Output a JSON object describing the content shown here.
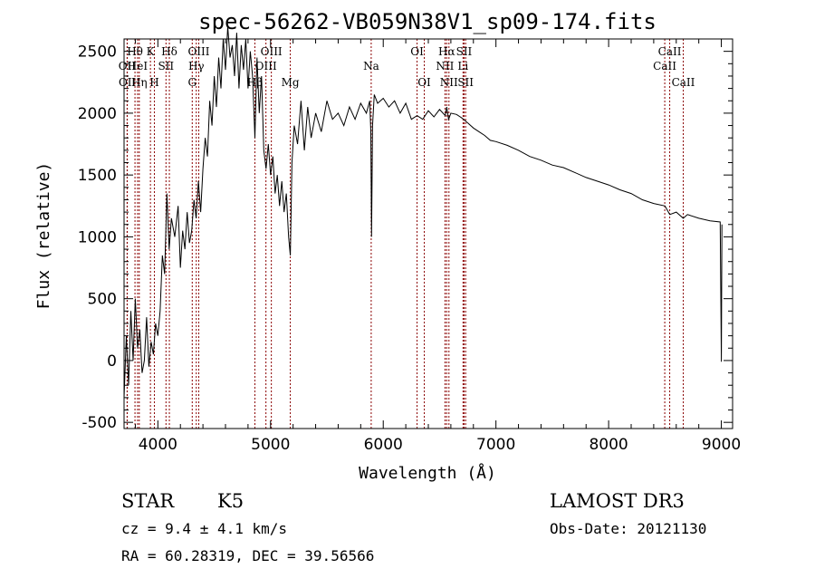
{
  "chart_data": {
    "type": "line",
    "title": "spec-56262-VB059N38V1_sp09-174.fits",
    "xlabel": "Wavelength (Å)",
    "ylabel": "Flux (relative)",
    "xlim": [
      3700,
      9100
    ],
    "ylim": [
      -550,
      2600
    ],
    "x_ticks": [
      4000,
      5000,
      6000,
      7000,
      8000,
      9000
    ],
    "y_ticks": [
      -500,
      0,
      500,
      1000,
      1500,
      2000,
      2500
    ],
    "series": [
      {
        "name": "spectrum",
        "x": [
          3700,
          3720,
          3740,
          3760,
          3780,
          3800,
          3820,
          3840,
          3860,
          3880,
          3900,
          3920,
          3940,
          3960,
          3980,
          4000,
          4020,
          4040,
          4060,
          4080,
          4100,
          4120,
          4150,
          4180,
          4200,
          4220,
          4240,
          4260,
          4280,
          4300,
          4320,
          4340,
          4360,
          4380,
          4400,
          4420,
          4440,
          4460,
          4480,
          4500,
          4520,
          4540,
          4560,
          4580,
          4600,
          4620,
          4640,
          4660,
          4680,
          4700,
          4720,
          4740,
          4760,
          4780,
          4800,
          4820,
          4840,
          4861,
          4880,
          4900,
          4920,
          4940,
          4960,
          4980,
          5000,
          5020,
          5040,
          5060,
          5080,
          5100,
          5120,
          5140,
          5160,
          5175,
          5190,
          5210,
          5240,
          5270,
          5300,
          5330,
          5360,
          5400,
          5450,
          5500,
          5550,
          5600,
          5650,
          5700,
          5750,
          5800,
          5850,
          5880,
          5890,
          5896,
          5905,
          5920,
          5950,
          6000,
          6050,
          6100,
          6150,
          6200,
          6250,
          6300,
          6350,
          6400,
          6450,
          6500,
          6550,
          6563,
          6580,
          6600,
          6650,
          6700,
          6750,
          6800,
          6850,
          6900,
          6950,
          7000,
          7100,
          7200,
          7300,
          7400,
          7500,
          7600,
          7700,
          7800,
          7900,
          8000,
          8100,
          8200,
          8300,
          8400,
          8500,
          8542,
          8600,
          8662,
          8700,
          8800,
          8900,
          8990,
          9000,
          9005
        ],
        "y": [
          -300,
          200,
          -200,
          400,
          0,
          500,
          100,
          250,
          -100,
          0,
          350,
          -50,
          150,
          50,
          300,
          200,
          400,
          850,
          700,
          1350,
          900,
          1150,
          1000,
          1250,
          750,
          1050,
          900,
          1200,
          950,
          1050,
          1300,
          1150,
          1450,
          1200,
          1550,
          1800,
          1650,
          2100,
          1900,
          2300,
          2050,
          2450,
          2200,
          2600,
          2350,
          2700,
          2450,
          2550,
          2300,
          2650,
          2200,
          2550,
          2350,
          2600,
          2200,
          2500,
          2300,
          1800,
          2450,
          2000,
          2300,
          1700,
          1550,
          1750,
          1500,
          1650,
          1350,
          1500,
          1250,
          1450,
          1200,
          1350,
          1000,
          850,
          1600,
          1900,
          1750,
          2100,
          1700,
          2050,
          1800,
          2000,
          1850,
          2100,
          1950,
          2000,
          1900,
          2050,
          1950,
          2080,
          2000,
          2100,
          1850,
          1000,
          1900,
          2150,
          2080,
          2120,
          2050,
          2100,
          2000,
          2080,
          1950,
          1980,
          1950,
          2020,
          1970,
          2030,
          1980,
          2050,
          1950,
          2000,
          1990,
          1960,
          1920,
          1880,
          1850,
          1820,
          1780,
          1770,
          1740,
          1700,
          1650,
          1620,
          1580,
          1560,
          1520,
          1480,
          1450,
          1420,
          1380,
          1350,
          1300,
          1270,
          1250,
          1180,
          1200,
          1150,
          1180,
          1150,
          1130,
          1120,
          -10,
          1100
        ]
      }
    ],
    "lines": [
      {
        "name": "H-theta",
        "x": 3797,
        "label": "Hθ",
        "row": 1
      },
      {
        "name": "OII-a",
        "x": 3727,
        "label": "OII",
        "row": 2
      },
      {
        "name": "OII-b",
        "x": 3729,
        "label": "OII",
        "row": 3
      },
      {
        "name": "HeI",
        "x": 3820,
        "label": "HeI",
        "row": 2
      },
      {
        "name": "H-eta",
        "x": 3835,
        "label": "Hη",
        "row": 3
      },
      {
        "name": "K",
        "x": 3934,
        "label": "K",
        "row": 1
      },
      {
        "name": "H",
        "x": 3969,
        "label": "H",
        "row": 3
      },
      {
        "name": "SII-a",
        "x": 4072,
        "label": "SII",
        "row": 2
      },
      {
        "name": "H-delta",
        "x": 4102,
        "label": "Hδ",
        "row": 1
      },
      {
        "name": "G",
        "x": 4305,
        "label": "G",
        "row": 3
      },
      {
        "name": "OIII-a",
        "x": 4363,
        "label": "OIII",
        "row": 1
      },
      {
        "name": "H-gamma",
        "x": 4341,
        "label": "Hγ",
        "row": 2
      },
      {
        "name": "H-beta",
        "x": 4861,
        "label": "Hβ",
        "row": 3
      },
      {
        "name": "OIII-b",
        "x": 4959,
        "label": "OIII",
        "row": 2
      },
      {
        "name": "OIII-c",
        "x": 5007,
        "label": "OIII",
        "row": 1
      },
      {
        "name": "Mg",
        "x": 5175,
        "label": "Mg",
        "row": 3
      },
      {
        "name": "Na",
        "x": 5893,
        "label": "Na",
        "row": 2
      },
      {
        "name": "OI-a",
        "x": 6300,
        "label": "OI",
        "row": 1
      },
      {
        "name": "OI-b",
        "x": 6364,
        "label": "OI",
        "row": 3
      },
      {
        "name": "NII-a",
        "x": 6548,
        "label": "NII",
        "row": 2
      },
      {
        "name": "H-alpha",
        "x": 6563,
        "label": "Hα",
        "row": 1
      },
      {
        "name": "NII-b",
        "x": 6583,
        "label": "NII",
        "row": 3
      },
      {
        "name": "Li",
        "x": 6708,
        "label": "Li",
        "row": 2
      },
      {
        "name": "SII-b",
        "x": 6717,
        "label": "SII",
        "row": 1
      },
      {
        "name": "SII-c",
        "x": 6731,
        "label": "SII",
        "row": 3
      },
      {
        "name": "CaII-a",
        "x": 8498,
        "label": "CaII",
        "row": 2
      },
      {
        "name": "CaII-b",
        "x": 8542,
        "label": "CaII",
        "row": 1
      },
      {
        "name": "CaII-c",
        "x": 8662,
        "label": "CaII",
        "row": 3
      }
    ]
  },
  "info": {
    "object_class": "STAR",
    "subclass": "K5",
    "survey": "LAMOST DR3",
    "redshift": "cz = 9.4 ± 4.1 km/s",
    "obs_date": "Obs-Date: 20121130",
    "coords": "RA =  60.28319, DEC =  39.56566"
  },
  "colors": {
    "spectrum": "#000000",
    "lines": "#8b0000",
    "axes": "#000000"
  }
}
